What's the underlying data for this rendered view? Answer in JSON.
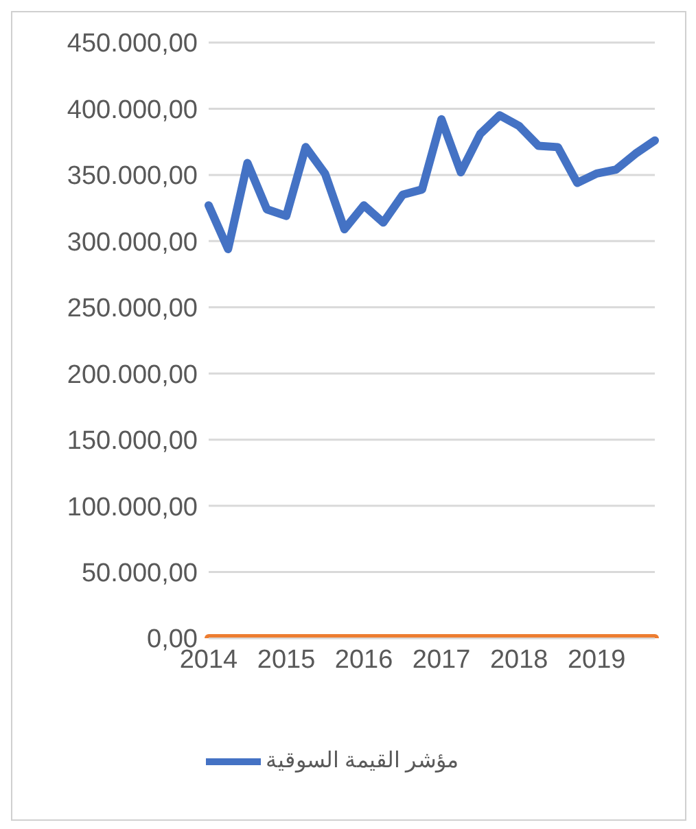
{
  "chart_data": {
    "type": "line",
    "categories": [
      "2014",
      null,
      null,
      null,
      "2015",
      null,
      null,
      null,
      "2016",
      null,
      null,
      null,
      "2017",
      null,
      null,
      null,
      "2018",
      null,
      null,
      null,
      "2019",
      null,
      null,
      null
    ],
    "series": [
      {
        "name": "مؤشر القيمة السوقية",
        "color": "#4472c4",
        "values": [
          327000,
          294000,
          359000,
          324000,
          319000,
          371000,
          351000,
          309000,
          327000,
          314000,
          335000,
          339000,
          392000,
          352000,
          381000,
          395000,
          387000,
          372000,
          371000,
          344000,
          351000,
          354000,
          366000,
          376000
        ]
      },
      {
        "color": "#ed7d31",
        "values": [
          0,
          0,
          0,
          0,
          0,
          0,
          0,
          0,
          0,
          0,
          0,
          0,
          0,
          0,
          0,
          0,
          0,
          0,
          0,
          0,
          0,
          0,
          0,
          0
        ]
      }
    ],
    "ylim": [
      0,
      450000
    ],
    "yticks": [
      {
        "value": 0,
        "label": "0,00"
      },
      {
        "value": 50000,
        "label": "50.000,00"
      },
      {
        "value": 100000,
        "label": "100.000,00"
      },
      {
        "value": 150000,
        "label": "150.000,00"
      },
      {
        "value": 200000,
        "label": "200.000,00"
      },
      {
        "value": 250000,
        "label": "250.000,00"
      },
      {
        "value": 300000,
        "label": "300.000,00"
      },
      {
        "value": 350000,
        "label": "350.000,00"
      },
      {
        "value": 400000,
        "label": "400.000,00"
      },
      {
        "value": 450000,
        "label": "450.000,00"
      }
    ],
    "grid": "y",
    "legend": "bottom",
    "marker": "none",
    "line_style": "solid"
  }
}
